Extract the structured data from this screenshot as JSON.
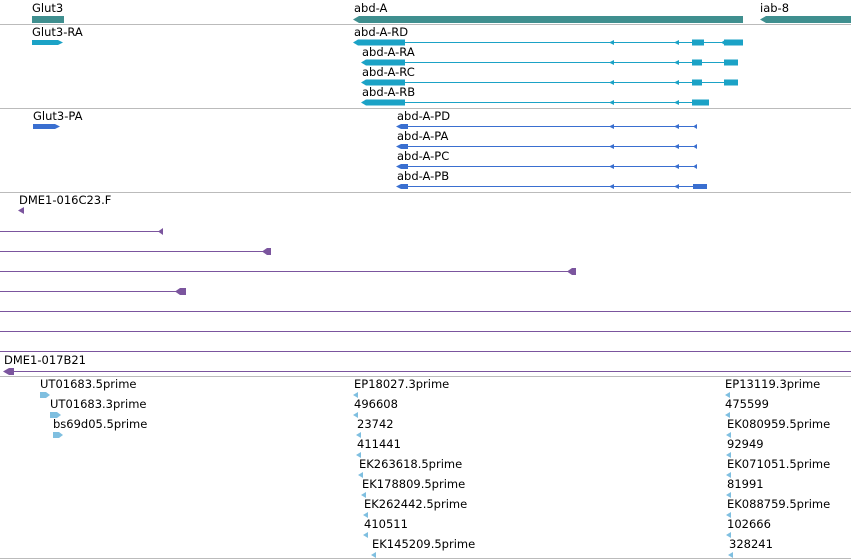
{
  "colors": {
    "gene": "#3f8f8f",
    "transcript": "#1ba2c6",
    "protein": "#3a6fd0",
    "clone": "#7b559e",
    "est": "#7fbfe0",
    "divider": "#bbbbbb"
  },
  "genes": {
    "glut3": "Glut3",
    "abda": "abd-A",
    "iab8": "iab-8"
  },
  "transcripts": {
    "glut3_ra": "Glut3-RA",
    "abda_rd": "abd-A-RD",
    "abda_ra": "abd-A-RA",
    "abda_rc": "abd-A-RC",
    "abda_rb": "abd-A-RB"
  },
  "proteins": {
    "glut3_pa": "Glut3-PA",
    "abda_pd": "abd-A-PD",
    "abda_pa": "abd-A-PA",
    "abda_pc": "abd-A-PC",
    "abda_pb": "abd-A-PB"
  },
  "clones": {
    "c1": "DME1-016C23.F",
    "c2": "DME1-017B21"
  },
  "ests": {
    "left": [
      "UT01683.5prime",
      "UT01683.3prime",
      "bs69d05.5prime"
    ],
    "middle": [
      "EP18027.3prime",
      "496608",
      "23742",
      "411441",
      "EK263618.5prime",
      "EK178809.5prime",
      "EK262442.5prime",
      "410511",
      "EK145209.5prime"
    ],
    "right": [
      "EP13119.3prime",
      "475599",
      "EK080959.5prime",
      "92949",
      "EK071051.5prime",
      "81991",
      "EK088759.5prime",
      "102666",
      "328241"
    ]
  }
}
